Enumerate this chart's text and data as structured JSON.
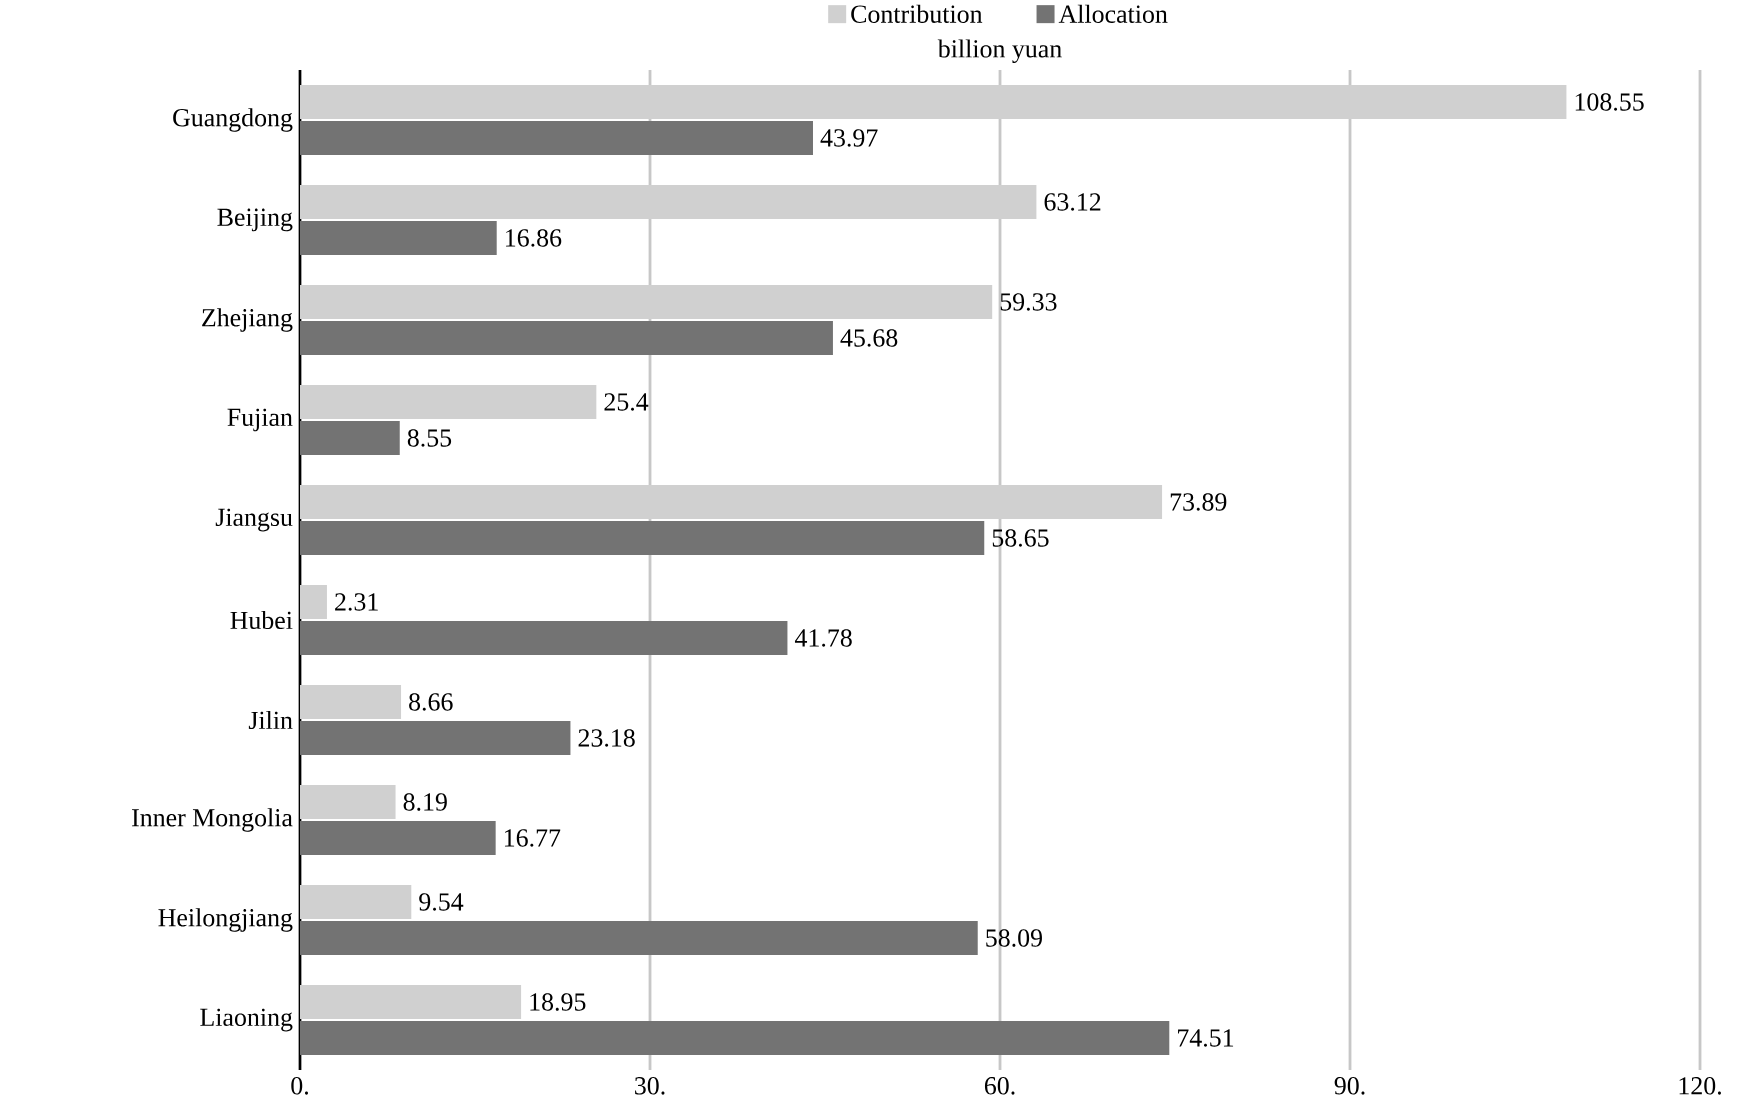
{
  "chart_data": {
    "type": "bar",
    "orientation": "horizontal",
    "xlabel": "billion yuan",
    "categories": [
      "Guangdong",
      "Beijing",
      "Zhejiang",
      "Fujian",
      "Jiangsu",
      "Hubei",
      "Jilin",
      "Inner Mongolia",
      "Heilongjiang",
      "Liaoning"
    ],
    "series": [
      {
        "name": "Contribution",
        "color": "#d0d0d0",
        "values": [
          108.55,
          63.12,
          59.33,
          25.4,
          73.89,
          2.31,
          8.66,
          8.19,
          9.54,
          18.95
        ]
      },
      {
        "name": "Allocation",
        "color": "#737373",
        "values": [
          43.97,
          16.86,
          45.68,
          8.55,
          58.65,
          41.78,
          23.18,
          16.77,
          58.09,
          74.51
        ]
      }
    ],
    "xlim": [
      0,
      120
    ],
    "xticks": [
      {
        "value": 0,
        "label": "0."
      },
      {
        "value": 30,
        "label": "30."
      },
      {
        "value": 60,
        "label": "60."
      },
      {
        "value": 90,
        "label": "90."
      },
      {
        "value": 120,
        "label": "120."
      }
    ],
    "grid": "x",
    "legend": "top",
    "data_labels": true
  }
}
